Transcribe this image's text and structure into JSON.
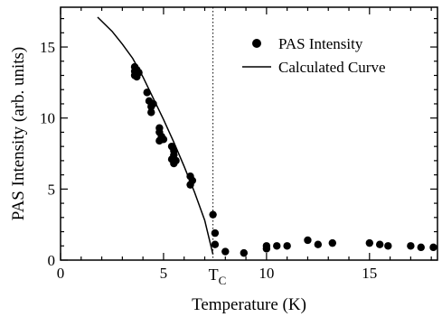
{
  "chart_data": {
    "type": "scatter",
    "xlabel": "Temperature (K)",
    "ylabel": "PAS Intensity (arb. units)",
    "xlim": [
      0,
      18.3
    ],
    "ylim": [
      0,
      17.8
    ],
    "x_ticks": [
      0,
      5,
      10,
      15
    ],
    "y_ticks": [
      0,
      5,
      10,
      15
    ],
    "grid": false,
    "legend_position": "top-right",
    "tc": {
      "x": 7.4,
      "label": "T",
      "subscript": "C"
    },
    "series": [
      {
        "name": "PAS Intensity",
        "kind": "points",
        "color": "#000000",
        "points": [
          [
            3.6,
            13.6
          ],
          [
            3.6,
            13.3
          ],
          [
            3.6,
            13.0
          ],
          [
            3.7,
            13.4
          ],
          [
            3.7,
            12.9
          ],
          [
            3.8,
            13.2
          ],
          [
            4.2,
            11.8
          ],
          [
            4.3,
            11.2
          ],
          [
            4.4,
            10.8
          ],
          [
            4.5,
            11.0
          ],
          [
            4.4,
            10.4
          ],
          [
            4.8,
            9.3
          ],
          [
            4.8,
            9.0
          ],
          [
            4.9,
            8.7
          ],
          [
            4.8,
            8.4
          ],
          [
            5.0,
            8.5
          ],
          [
            5.4,
            8.0
          ],
          [
            5.5,
            7.7
          ],
          [
            5.5,
            7.4
          ],
          [
            5.4,
            7.1
          ],
          [
            5.5,
            6.8
          ],
          [
            5.6,
            7.0
          ],
          [
            6.3,
            5.9
          ],
          [
            6.4,
            5.6
          ],
          [
            6.3,
            5.3
          ],
          [
            7.4,
            3.2
          ],
          [
            7.5,
            1.9
          ],
          [
            7.5,
            1.1
          ],
          [
            8.0,
            0.6
          ],
          [
            8.9,
            0.5
          ],
          [
            10.0,
            1.0
          ],
          [
            10.0,
            0.8
          ],
          [
            10.5,
            1.0
          ],
          [
            11.0,
            1.0
          ],
          [
            12.0,
            1.4
          ],
          [
            12.5,
            1.1
          ],
          [
            13.2,
            1.2
          ],
          [
            15.0,
            1.2
          ],
          [
            15.5,
            1.1
          ],
          [
            15.9,
            1.0
          ],
          [
            17.0,
            1.0
          ],
          [
            17.5,
            0.9
          ],
          [
            18.1,
            0.9
          ]
        ]
      },
      {
        "name": "Calculated Curve",
        "kind": "line",
        "color": "#000000",
        "points": [
          [
            1.8,
            17.1
          ],
          [
            2.5,
            16.1
          ],
          [
            3.0,
            15.2
          ],
          [
            3.5,
            14.2
          ],
          [
            4.0,
            12.9
          ],
          [
            4.5,
            11.4
          ],
          [
            5.0,
            9.9
          ],
          [
            5.5,
            8.3
          ],
          [
            6.0,
            6.6
          ],
          [
            6.5,
            4.8
          ],
          [
            7.0,
            2.8
          ],
          [
            7.4,
            0.4
          ]
        ]
      }
    ]
  }
}
